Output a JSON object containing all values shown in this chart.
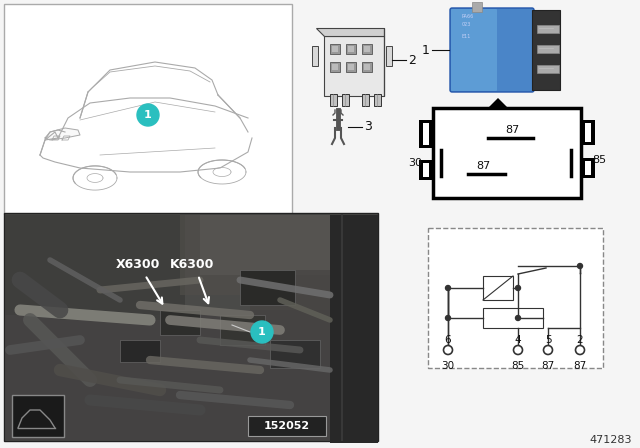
{
  "bg_color": "#f5f5f5",
  "part_number": "471283",
  "ref_number": "152052",
  "teal_color": "#2abfbf",
  "relay_blue": "#4f8fc0",
  "relay_dark": "#2a5580",
  "text_color": "#111111",
  "photo_bg": "#4a4a4a",
  "photo_bg2": "#5a5855",
  "car_line": "#aaaaaa",
  "black": "#000000",
  "white": "#ffffff",
  "label2": "2",
  "label3": "3",
  "label1": "1",
  "x6300": "X6300",
  "k6300": "K6300",
  "ref": "152052",
  "partnum": "471283",
  "pin87_top": "87",
  "pin30": "30",
  "pin87_mid": "87",
  "pin85": "85",
  "sch_pins": [
    "6",
    "4",
    "5",
    "2"
  ],
  "sch_labels": [
    "30",
    "85",
    "87",
    "87"
  ]
}
